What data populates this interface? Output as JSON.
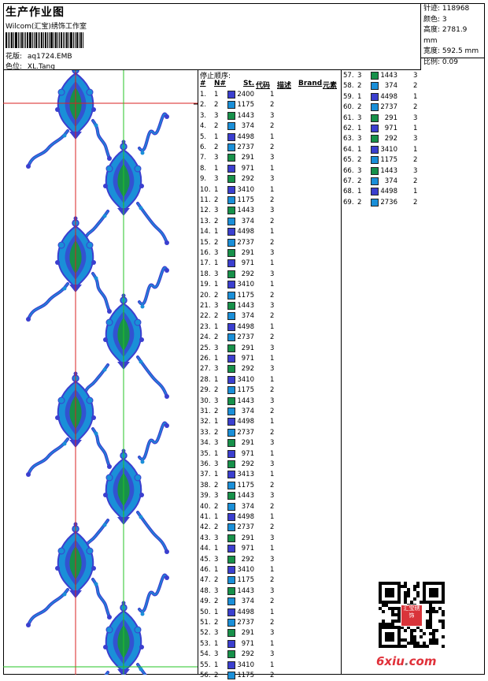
{
  "header": {
    "title": "生产作业图",
    "company": "Wilcom(汇宝)绣饰工作室",
    "design_label": "花版:",
    "design_value": "aq1724.EMB",
    "colorway_label": "色位:",
    "colorway_value": "XL.Tang"
  },
  "stats": {
    "stitches_label": "针迹:",
    "stitches_value": "118968",
    "colors_label": "颜色:",
    "colors_value": "3",
    "height_label": "高度:",
    "height_value": "2781.9 mm",
    "width_label": "宽度:",
    "width_value": "592.5 mm",
    "scale_label": "比例:",
    "scale_value": "0.09"
  },
  "stop_sequence": {
    "heading": "停止顺序:",
    "col_num": "#",
    "col_needle": "N#",
    "col_st": "St.",
    "col_code": "代码",
    "col_desc": "描述",
    "col_brand": "Brand",
    "col_element": "元素"
  },
  "colors": {
    "c1": "#3b3fcf",
    "c2": "#1a8fd8",
    "c3": "#17914a"
  },
  "rows": [
    {
      "n": "1.",
      "needle": "1",
      "code": "2400",
      "stops": "1",
      "color": "#3b3fcf"
    },
    {
      "n": "2.",
      "needle": "2",
      "code": "1175",
      "stops": "2",
      "color": "#1a8fd8"
    },
    {
      "n": "3.",
      "needle": "3",
      "code": "1443",
      "stops": "3",
      "color": "#17914a"
    },
    {
      "n": "4.",
      "needle": "2",
      "code": "374",
      "stops": "2",
      "color": "#1a8fd8"
    },
    {
      "n": "5.",
      "needle": "1",
      "code": "4498",
      "stops": "1",
      "color": "#3b3fcf"
    },
    {
      "n": "6.",
      "needle": "2",
      "code": "2737",
      "stops": "2",
      "color": "#1a8fd8"
    },
    {
      "n": "7.",
      "needle": "3",
      "code": "291",
      "stops": "3",
      "color": "#17914a"
    },
    {
      "n": "8.",
      "needle": "1",
      "code": "971",
      "stops": "1",
      "color": "#3b3fcf"
    },
    {
      "n": "9.",
      "needle": "3",
      "code": "292",
      "stops": "3",
      "color": "#17914a"
    },
    {
      "n": "10.",
      "needle": "1",
      "code": "3410",
      "stops": "1",
      "color": "#3b3fcf"
    },
    {
      "n": "11.",
      "needle": "2",
      "code": "1175",
      "stops": "2",
      "color": "#1a8fd8"
    },
    {
      "n": "12.",
      "needle": "3",
      "code": "1443",
      "stops": "3",
      "color": "#17914a"
    },
    {
      "n": "13.",
      "needle": "2",
      "code": "374",
      "stops": "2",
      "color": "#1a8fd8"
    },
    {
      "n": "14.",
      "needle": "1",
      "code": "4498",
      "stops": "1",
      "color": "#3b3fcf"
    },
    {
      "n": "15.",
      "needle": "2",
      "code": "2737",
      "stops": "2",
      "color": "#1a8fd8"
    },
    {
      "n": "16.",
      "needle": "3",
      "code": "291",
      "stops": "3",
      "color": "#17914a"
    },
    {
      "n": "17.",
      "needle": "1",
      "code": "971",
      "stops": "1",
      "color": "#3b3fcf"
    },
    {
      "n": "18.",
      "needle": "3",
      "code": "292",
      "stops": "3",
      "color": "#17914a"
    },
    {
      "n": "19.",
      "needle": "1",
      "code": "3410",
      "stops": "1",
      "color": "#3b3fcf"
    },
    {
      "n": "20.",
      "needle": "2",
      "code": "1175",
      "stops": "2",
      "color": "#1a8fd8"
    },
    {
      "n": "21.",
      "needle": "3",
      "code": "1443",
      "stops": "3",
      "color": "#17914a"
    },
    {
      "n": "22.",
      "needle": "2",
      "code": "374",
      "stops": "2",
      "color": "#1a8fd8"
    },
    {
      "n": "23.",
      "needle": "1",
      "code": "4498",
      "stops": "1",
      "color": "#3b3fcf"
    },
    {
      "n": "24.",
      "needle": "2",
      "code": "2737",
      "stops": "2",
      "color": "#1a8fd8"
    },
    {
      "n": "25.",
      "needle": "3",
      "code": "291",
      "stops": "3",
      "color": "#17914a"
    },
    {
      "n": "26.",
      "needle": "1",
      "code": "971",
      "stops": "1",
      "color": "#3b3fcf"
    },
    {
      "n": "27.",
      "needle": "3",
      "code": "292",
      "stops": "3",
      "color": "#17914a"
    },
    {
      "n": "28.",
      "needle": "1",
      "code": "3410",
      "stops": "1",
      "color": "#3b3fcf"
    },
    {
      "n": "29.",
      "needle": "2",
      "code": "1175",
      "stops": "2",
      "color": "#1a8fd8"
    },
    {
      "n": "30.",
      "needle": "3",
      "code": "1443",
      "stops": "3",
      "color": "#17914a"
    },
    {
      "n": "31.",
      "needle": "2",
      "code": "374",
      "stops": "2",
      "color": "#1a8fd8"
    },
    {
      "n": "32.",
      "needle": "1",
      "code": "4498",
      "stops": "1",
      "color": "#3b3fcf"
    },
    {
      "n": "33.",
      "needle": "2",
      "code": "2737",
      "stops": "2",
      "color": "#1a8fd8"
    },
    {
      "n": "34.",
      "needle": "3",
      "code": "291",
      "stops": "3",
      "color": "#17914a"
    },
    {
      "n": "35.",
      "needle": "1",
      "code": "971",
      "stops": "1",
      "color": "#3b3fcf"
    },
    {
      "n": "36.",
      "needle": "3",
      "code": "292",
      "stops": "3",
      "color": "#17914a"
    },
    {
      "n": "37.",
      "needle": "1",
      "code": "3413",
      "stops": "1",
      "color": "#3b3fcf"
    },
    {
      "n": "38.",
      "needle": "2",
      "code": "1175",
      "stops": "2",
      "color": "#1a8fd8"
    },
    {
      "n": "39.",
      "needle": "3",
      "code": "1443",
      "stops": "3",
      "color": "#17914a"
    },
    {
      "n": "40.",
      "needle": "2",
      "code": "374",
      "stops": "2",
      "color": "#1a8fd8"
    },
    {
      "n": "41.",
      "needle": "1",
      "code": "4498",
      "stops": "1",
      "color": "#3b3fcf"
    },
    {
      "n": "42.",
      "needle": "2",
      "code": "2737",
      "stops": "2",
      "color": "#1a8fd8"
    },
    {
      "n": "43.",
      "needle": "3",
      "code": "291",
      "stops": "3",
      "color": "#17914a"
    },
    {
      "n": "44.",
      "needle": "1",
      "code": "971",
      "stops": "1",
      "color": "#3b3fcf"
    },
    {
      "n": "45.",
      "needle": "3",
      "code": "292",
      "stops": "3",
      "color": "#17914a"
    },
    {
      "n": "46.",
      "needle": "1",
      "code": "3410",
      "stops": "1",
      "color": "#3b3fcf"
    },
    {
      "n": "47.",
      "needle": "2",
      "code": "1175",
      "stops": "2",
      "color": "#1a8fd8"
    },
    {
      "n": "48.",
      "needle": "3",
      "code": "1443",
      "stops": "3",
      "color": "#17914a"
    },
    {
      "n": "49.",
      "needle": "2",
      "code": "374",
      "stops": "2",
      "color": "#1a8fd8"
    },
    {
      "n": "50.",
      "needle": "1",
      "code": "4498",
      "stops": "1",
      "color": "#3b3fcf"
    },
    {
      "n": "51.",
      "needle": "2",
      "code": "2737",
      "stops": "2",
      "color": "#1a8fd8"
    },
    {
      "n": "52.",
      "needle": "3",
      "code": "291",
      "stops": "3",
      "color": "#17914a"
    },
    {
      "n": "53.",
      "needle": "1",
      "code": "971",
      "stops": "1",
      "color": "#3b3fcf"
    },
    {
      "n": "54.",
      "needle": "3",
      "code": "292",
      "stops": "3",
      "color": "#17914a"
    },
    {
      "n": "55.",
      "needle": "1",
      "code": "3410",
      "stops": "1",
      "color": "#3b3fcf"
    },
    {
      "n": "56.",
      "needle": "2",
      "code": "1175",
      "stops": "2",
      "color": "#1a8fd8"
    },
    {
      "n": "57.",
      "needle": "3",
      "code": "1443",
      "stops": "3",
      "color": "#17914a"
    },
    {
      "n": "58.",
      "needle": "2",
      "code": "374",
      "stops": "2",
      "color": "#1a8fd8"
    },
    {
      "n": "59.",
      "needle": "1",
      "code": "4498",
      "stops": "1",
      "color": "#3b3fcf"
    },
    {
      "n": "60.",
      "needle": "2",
      "code": "2737",
      "stops": "2",
      "color": "#1a8fd8"
    },
    {
      "n": "61.",
      "needle": "3",
      "code": "291",
      "stops": "3",
      "color": "#17914a"
    },
    {
      "n": "62.",
      "needle": "1",
      "code": "971",
      "stops": "1",
      "color": "#3b3fcf"
    },
    {
      "n": "63.",
      "needle": "3",
      "code": "292",
      "stops": "3",
      "color": "#17914a"
    },
    {
      "n": "64.",
      "needle": "1",
      "code": "3410",
      "stops": "1",
      "color": "#3b3fcf"
    },
    {
      "n": "65.",
      "needle": "2",
      "code": "1175",
      "stops": "2",
      "color": "#1a8fd8"
    },
    {
      "n": "66.",
      "needle": "3",
      "code": "1443",
      "stops": "3",
      "color": "#17914a"
    },
    {
      "n": "67.",
      "needle": "2",
      "code": "374",
      "stops": "2",
      "color": "#1a8fd8"
    },
    {
      "n": "68.",
      "needle": "1",
      "code": "4498",
      "stops": "1",
      "color": "#3b3fcf"
    },
    {
      "n": "69.",
      "needle": "2",
      "code": "2736",
      "stops": "2",
      "color": "#1a8fd8"
    }
  ],
  "footer": {
    "logo_part1": "6xiu",
    "logo_dot": ".",
    "logo_part2": "com",
    "stamp_text": "汇宝绣饰"
  }
}
